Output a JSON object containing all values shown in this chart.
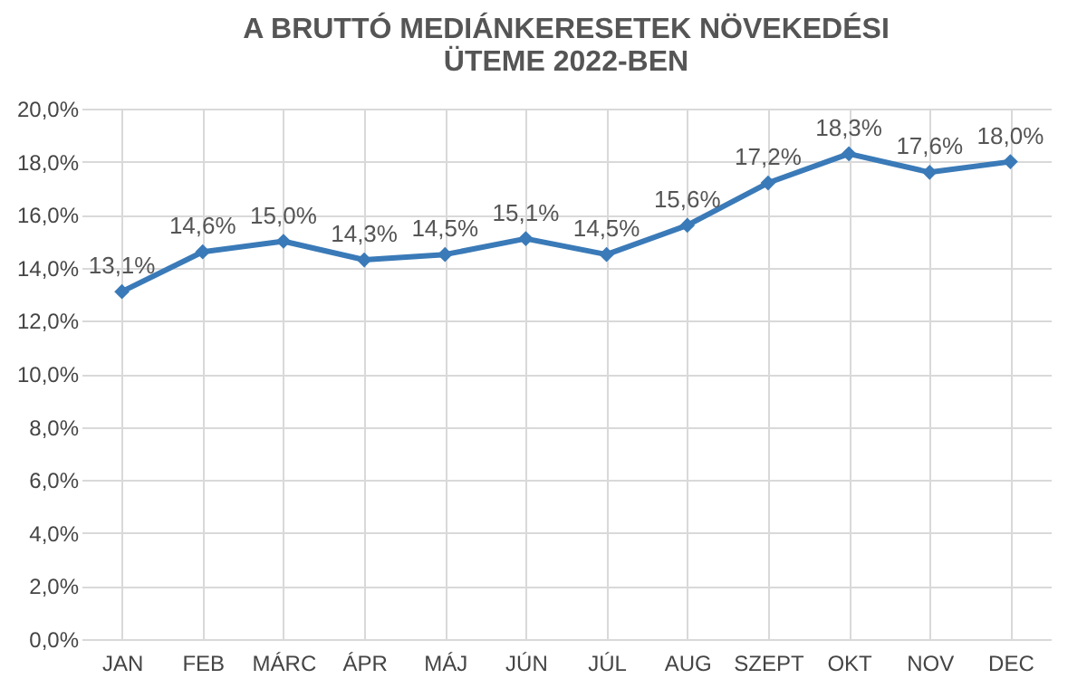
{
  "chart_data": {
    "type": "line",
    "title": "A BRUTTÓ MEDIÁNKERESETEK NÖVEKEDÉSI\nÜTEME 2022-BEN",
    "categories": [
      "JAN",
      "FEB",
      "MÁRC",
      "ÁPR",
      "MÁJ",
      "JÚN",
      "JÚL",
      "AUG",
      "SZEPT",
      "OKT",
      "NOV",
      "DEC"
    ],
    "series": [
      {
        "color": "#3a7ab8",
        "values": [
          13.1,
          14.6,
          15.0,
          14.3,
          14.5,
          15.1,
          14.5,
          15.6,
          17.2,
          18.3,
          17.6,
          18.0
        ],
        "value_labels": [
          "13,1%",
          "14,6%",
          "15,0%",
          "14,3%",
          "14,5%",
          "15,1%",
          "14,5%",
          "15,6%",
          "17,2%",
          "18,3%",
          "17,6%",
          "18,0%"
        ]
      }
    ],
    "ylim": [
      0,
      20
    ],
    "yticks": [
      {
        "value": 0,
        "label": "0,0%"
      },
      {
        "value": 2,
        "label": "2,0%"
      },
      {
        "value": 4,
        "label": "4,0%"
      },
      {
        "value": 6,
        "label": "6,0%"
      },
      {
        "value": 8,
        "label": "8,0%"
      },
      {
        "value": 10,
        "label": "10,0%"
      },
      {
        "value": 12,
        "label": "12,0%"
      },
      {
        "value": 14,
        "label": "14,0%"
      },
      {
        "value": 16,
        "label": "16,0%"
      },
      {
        "value": 18,
        "label": "18,0%"
      },
      {
        "value": 20,
        "label": "20,0%"
      }
    ],
    "grid": true,
    "marker": "diamond",
    "line_style": "solid"
  }
}
